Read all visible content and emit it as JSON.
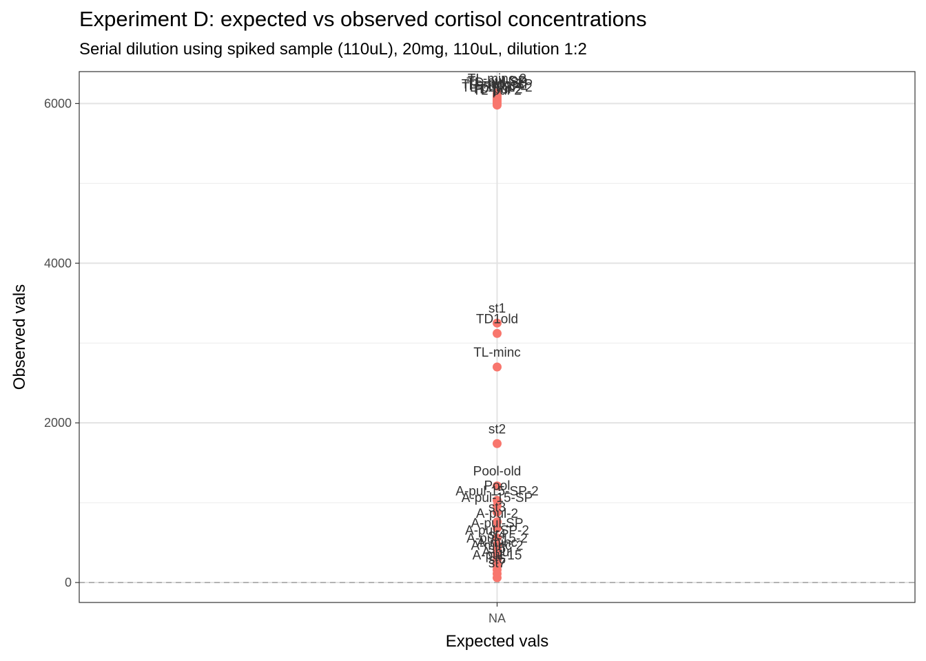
{
  "chart_data": {
    "type": "scatter",
    "title": "Experiment D: expected vs observed cortisol concentrations",
    "subtitle": "Serial dilution using spiked sample (110uL), 20mg, 110uL, dilution 1:2",
    "xlabel": "Expected vals",
    "ylabel": "Observed vals",
    "x_categories": [
      "NA"
    ],
    "ylim": [
      -250,
      6400
    ],
    "y_ticks": [
      0,
      2000,
      4000,
      6000
    ],
    "y_tick_labels": [
      "0",
      "2000",
      "4000",
      "6000"
    ],
    "reference_line": {
      "y": 0,
      "style": "dashed"
    },
    "grid": true,
    "point_color": "#F8766D",
    "points": [
      {
        "x": "NA",
        "y": 6130,
        "label": "TL-minc-2"
      },
      {
        "x": "NA",
        "y": 6100,
        "label": "TL-pul-SP"
      },
      {
        "x": "NA",
        "y": 6080,
        "label": "TD-pul-SP"
      },
      {
        "x": "NA",
        "y": 6060,
        "label": "TD-minc-SP"
      },
      {
        "x": "NA",
        "y": 6040,
        "label": "TD-minc-2"
      },
      {
        "x": "NA",
        "y": 6020,
        "label": "TL-pul-SP-2"
      },
      {
        "x": "NA",
        "y": 6000,
        "label": "TD-pul-2"
      },
      {
        "x": "NA",
        "y": 5980,
        "label": "TL-pul-2"
      },
      {
        "x": "NA",
        "y": 3250,
        "label": "st1"
      },
      {
        "x": "NA",
        "y": 3120,
        "label": "TD1old"
      },
      {
        "x": "NA",
        "y": 2700,
        "label": "TL-minc"
      },
      {
        "x": "NA",
        "y": 1740,
        "label": "st2"
      },
      {
        "x": "NA",
        "y": 1210,
        "label": "Pool-old"
      },
      {
        "x": "NA",
        "y": 1030,
        "label": "Pool"
      },
      {
        "x": "NA",
        "y": 960,
        "label": "A-pul-15-SP-2"
      },
      {
        "x": "NA",
        "y": 880,
        "label": "A-pul-15-SP"
      },
      {
        "x": "NA",
        "y": 760,
        "label": "st3"
      },
      {
        "x": "NA",
        "y": 680,
        "label": "A-pul-2"
      },
      {
        "x": "NA",
        "y": 560,
        "label": "A-pul-SP"
      },
      {
        "x": "NA",
        "y": 470,
        "label": "A-pul-SP-2"
      },
      {
        "x": "NA",
        "y": 420,
        "label": "st4"
      },
      {
        "x": "NA",
        "y": 370,
        "label": "A-pul-15-2"
      },
      {
        "x": "NA",
        "y": 320,
        "label": "A-minc"
      },
      {
        "x": "NA",
        "y": 280,
        "label": "A-minc-2"
      },
      {
        "x": "NA",
        "y": 240,
        "label": "st5"
      },
      {
        "x": "NA",
        "y": 200,
        "label": "A-pul"
      },
      {
        "x": "NA",
        "y": 160,
        "label": "A-pul-15"
      },
      {
        "x": "NA",
        "y": 110,
        "label": "st6"
      },
      {
        "x": "NA",
        "y": 60,
        "label": "st7"
      }
    ]
  }
}
